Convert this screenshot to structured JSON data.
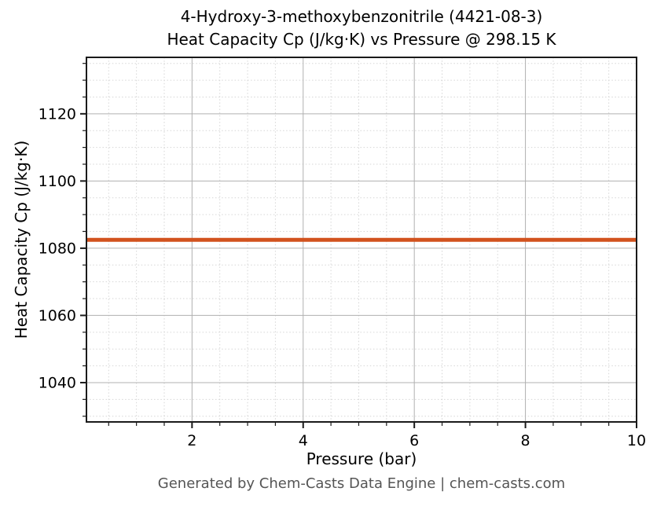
{
  "figure": {
    "title_line1": "4-Hydroxy-3-methoxybenzonitrile (4421-08-3)",
    "title_line2": "Heat Capacity Cp (J/kg·K) vs Pressure @ 298.15 K",
    "footer": "Generated by Chem-Casts Data Engine | chem-casts.com",
    "footer_color": "#555555"
  },
  "chart_data": {
    "type": "line",
    "title": "4-Hydroxy-3-methoxybenzonitrile (4421-08-3)\nHeat Capacity Cp (J/kg·K) vs Pressure @ 298.15 K",
    "xlabel": "Pressure (bar)",
    "ylabel": "Heat Capacity Cp (J/kg·K)",
    "series": [
      {
        "name": "Heat Capacity Cp",
        "x": [
          0.1,
          10
        ],
        "y": [
          1082.5,
          1082.5
        ],
        "color": "#d2521e",
        "linewidth": 5
      }
    ],
    "xlim": [
      0.1,
      10
    ],
    "ylim": [
      1028.3,
      1136.8
    ],
    "x_major_ticks": [
      2,
      4,
      6,
      8,
      10
    ],
    "y_major_ticks": [
      1040,
      1060,
      1080,
      1100,
      1120
    ],
    "x_major_step": 2,
    "y_major_step": 20,
    "x_minor_step": 0.5,
    "y_minor_step": 5,
    "grid": true,
    "legend": "none",
    "colors": {
      "spine": "#1a1a1a",
      "tick": "#1a1a1a",
      "tick_label": "#000000",
      "major_grid": "#b0b0b0",
      "minor_grid": "#d6d6d6"
    }
  }
}
